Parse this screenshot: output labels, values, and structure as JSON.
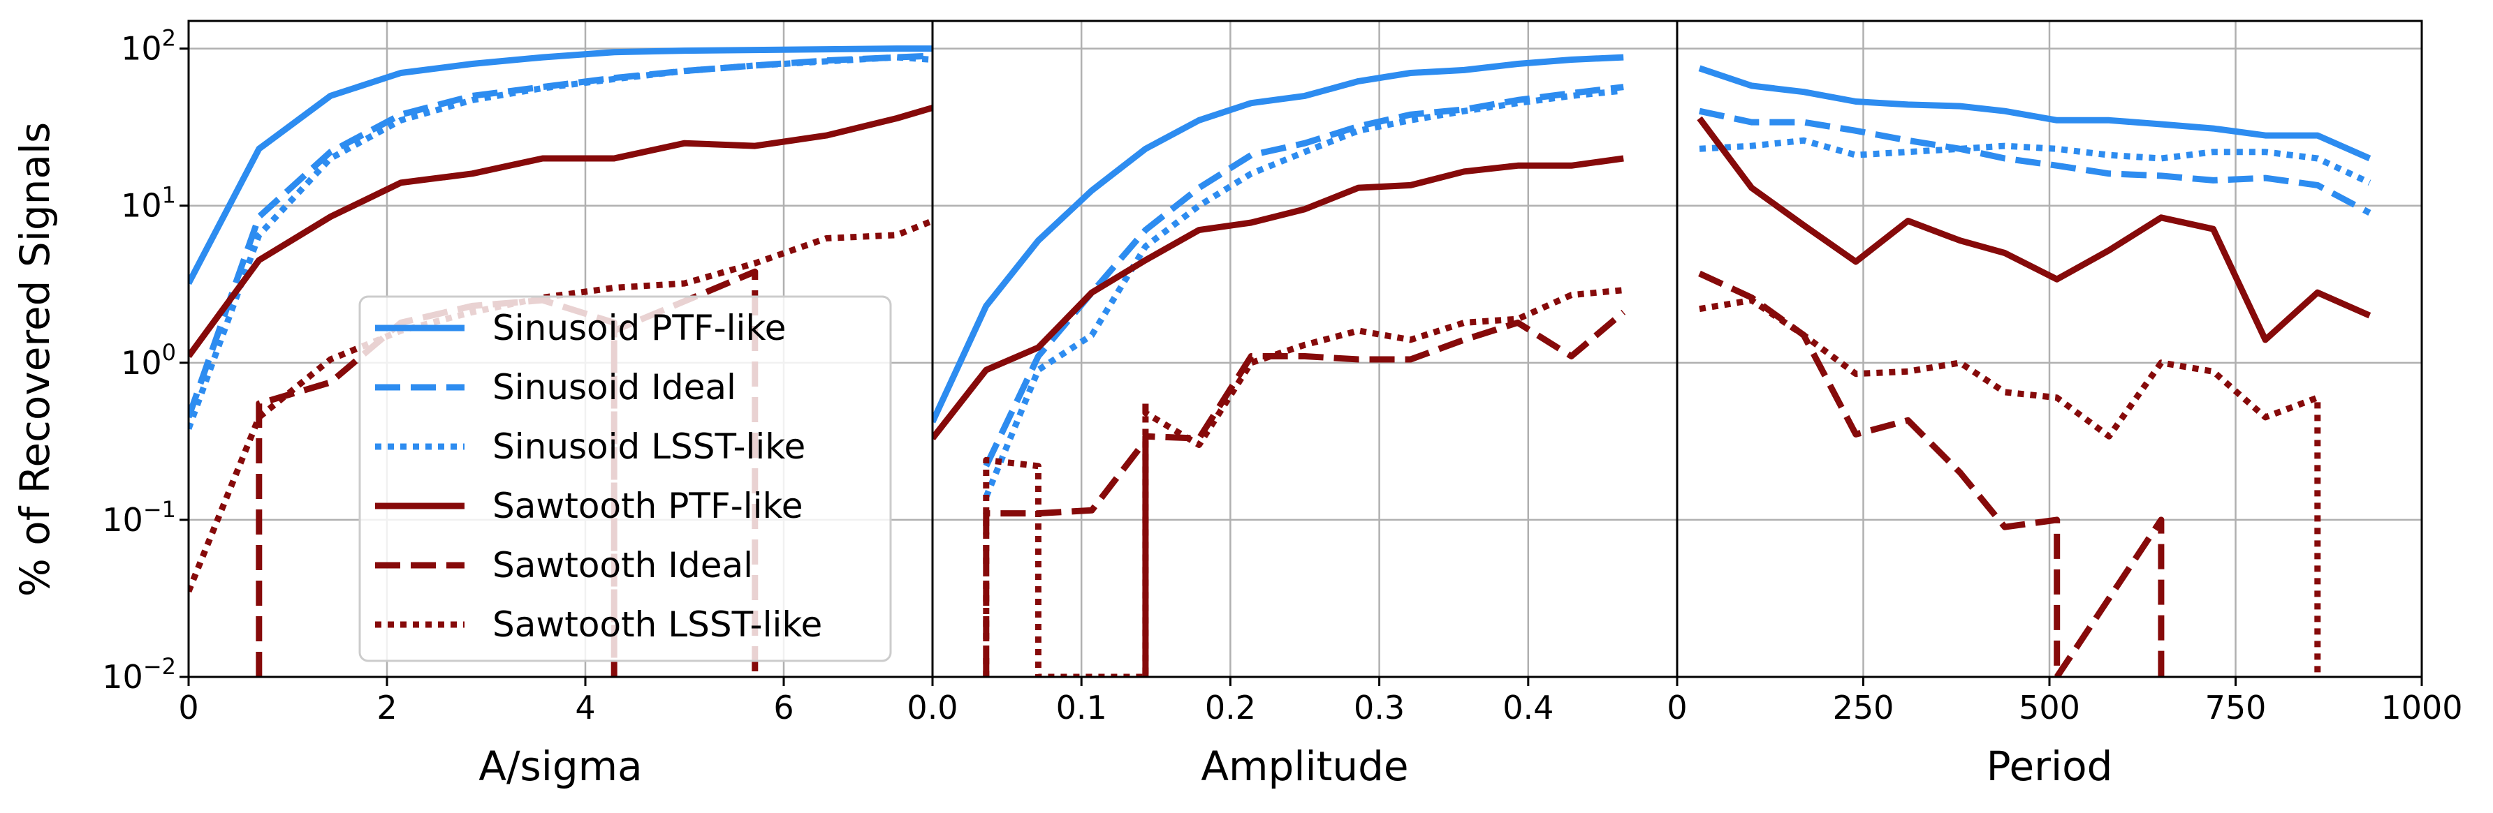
{
  "figure": {
    "ylabel": "% of Recovered Signals",
    "colors": {
      "sinusoid": "#2d8cf0",
      "sawtooth": "#860a0a",
      "grid": "#b0b0b0",
      "axis": "#000000"
    }
  },
  "legend": {
    "location": "lower-right of left panel",
    "entries": [
      {
        "label": "Sinusoid PTF-like",
        "color": "#2d8cf0",
        "style": "solid"
      },
      {
        "label": "Sinusoid Ideal",
        "color": "#2d8cf0",
        "style": "dashed"
      },
      {
        "label": "Sinusoid LSST-like",
        "color": "#2d8cf0",
        "style": "dotted"
      },
      {
        "label": "Sawtooth PTF-like",
        "color": "#860a0a",
        "style": "solid"
      },
      {
        "label": "Sawtooth Ideal",
        "color": "#860a0a",
        "style": "dashed"
      },
      {
        "label": "Sawtooth LSST-like",
        "color": "#860a0a",
        "style": "dotted"
      }
    ]
  },
  "chart_data": [
    {
      "type": "line",
      "xlabel": "A/sigma",
      "ylabel": "% of Recovered Signals",
      "yscale": "log",
      "xlim": [
        0,
        7.5
      ],
      "ylim": [
        0.01,
        150
      ],
      "xticks": [
        0,
        2,
        4,
        6
      ],
      "xtick_labels": [
        "0",
        "2",
        "4",
        "6"
      ],
      "yticks": [
        0.01,
        0.1,
        1,
        10,
        100
      ],
      "ytick_labels": [
        [
          "10",
          "−2"
        ],
        [
          "10",
          "−1"
        ],
        [
          "10",
          "0"
        ],
        [
          "10",
          "1"
        ],
        [
          "10",
          "2"
        ]
      ],
      "grid": true,
      "series": [
        {
          "name": "Sinusoid PTF-like",
          "color": "#2d8cf0",
          "style": "solid",
          "x": [
            0,
            0.71,
            1.43,
            2.14,
            2.86,
            3.57,
            4.29,
            5.0,
            5.71,
            6.43,
            7.14,
            7.5
          ],
          "y": [
            3.2,
            23,
            50,
            70,
            80,
            88,
            95,
            97,
            98,
            99,
            100,
            100
          ]
        },
        {
          "name": "Sinusoid Ideal",
          "color": "#2d8cf0",
          "style": "dashed",
          "x": [
            0,
            0.71,
            1.43,
            2.14,
            2.86,
            3.57,
            4.29,
            5.0,
            5.71,
            6.43,
            7.14,
            7.5
          ],
          "y": [
            0.45,
            8.5,
            22,
            38,
            50,
            57,
            65,
            72,
            78,
            84,
            88,
            90
          ]
        },
        {
          "name": "Sinusoid LSST-like",
          "color": "#2d8cf0",
          "style": "dotted",
          "x": [
            0,
            0.71,
            1.43,
            2.14,
            2.86,
            3.57,
            4.29,
            5.0,
            5.71,
            6.43,
            7.14,
            7.5
          ],
          "y": [
            0.38,
            6.5,
            20,
            35,
            47,
            56,
            64,
            72,
            78,
            83,
            88,
            85
          ]
        },
        {
          "name": "Sawtooth PTF-like",
          "color": "#860a0a",
          "style": "solid",
          "x": [
            0,
            0.71,
            1.43,
            2.14,
            2.86,
            3.57,
            4.29,
            5.0,
            5.71,
            6.43,
            7.14,
            7.5
          ],
          "y": [
            1.1,
            4.5,
            8.5,
            14,
            16,
            20,
            20,
            25,
            24,
            28,
            36,
            42
          ]
        },
        {
          "name": "Sawtooth Ideal",
          "color": "#860a0a",
          "style": "dashed",
          "x": [
            0.71,
            0.71,
            1.43,
            2.14,
            2.86,
            3.57,
            4.29,
            4.29,
            4.29,
            5.71,
            5.71
          ],
          "y": [
            0.01,
            0.55,
            0.75,
            1.8,
            2.3,
            2.5,
            1.8,
            0.01,
            1.6,
            3.8,
            0.01
          ]
        },
        {
          "name": "Sawtooth LSST-like",
          "color": "#860a0a",
          "style": "dotted",
          "x": [
            0,
            0.71,
            1.43,
            2.14,
            2.86,
            3.57,
            4.29,
            5.0,
            5.71,
            6.43,
            7.14,
            7.5
          ],
          "y": [
            0.035,
            0.45,
            1.05,
            1.6,
            2.1,
            2.6,
            3.0,
            3.2,
            4.3,
            6.2,
            6.5,
            8.0
          ]
        }
      ]
    },
    {
      "type": "line",
      "xlabel": "Amplitude",
      "yscale": "log",
      "xlim": [
        0,
        0.5
      ],
      "ylim": [
        0.01,
        150
      ],
      "xticks": [
        0,
        0.1,
        0.2,
        0.3,
        0.4
      ],
      "xtick_labels": [
        "0.0",
        "0.1",
        "0.2",
        "0.3",
        "0.4"
      ],
      "grid": true,
      "series": [
        {
          "name": "Sinusoid PTF-like",
          "color": "#2d8cf0",
          "style": "solid",
          "x": [
            0,
            0.036,
            0.071,
            0.107,
            0.143,
            0.179,
            0.214,
            0.25,
            0.286,
            0.321,
            0.357,
            0.393,
            0.429,
            0.464
          ],
          "y": [
            0.42,
            2.3,
            6,
            12.5,
            23,
            35,
            45,
            50,
            62,
            70,
            73,
            80,
            85,
            88
          ]
        },
        {
          "name": "Sinusoid Ideal",
          "color": "#2d8cf0",
          "style": "dashed",
          "x": [
            0.036,
            0.071,
            0.107,
            0.143,
            0.179,
            0.214,
            0.25,
            0.286,
            0.321,
            0.357,
            0.393,
            0.429,
            0.464
          ],
          "y": [
            0.22,
            1.1,
            2.8,
            7,
            13,
            21,
            25,
            32,
            38,
            41,
            47,
            52,
            57
          ]
        },
        {
          "name": "Sinusoid LSST-like",
          "color": "#2d8cf0",
          "style": "dotted",
          "x": [
            0.036,
            0.071,
            0.107,
            0.143,
            0.179,
            0.214,
            0.25,
            0.286,
            0.321,
            0.357,
            0.393,
            0.429,
            0.464
          ],
          "y": [
            0.14,
            0.9,
            1.5,
            5.5,
            10,
            16,
            22,
            30,
            35,
            40,
            45,
            50,
            54
          ]
        },
        {
          "name": "Sawtooth PTF-like",
          "color": "#860a0a",
          "style": "solid",
          "x": [
            0,
            0.036,
            0.071,
            0.107,
            0.143,
            0.179,
            0.214,
            0.25,
            0.286,
            0.321,
            0.357,
            0.393,
            0.429,
            0.464
          ],
          "y": [
            0.33,
            0.9,
            1.25,
            2.8,
            4.5,
            7,
            7.8,
            9.5,
            13,
            13.5,
            16.5,
            18,
            18,
            20
          ]
        },
        {
          "name": "Sawtooth Ideal",
          "color": "#860a0a",
          "style": "dashed",
          "x": [
            0.036,
            0.036,
            0.071,
            0.107,
            0.143,
            0.143,
            0.143,
            0.179,
            0.214,
            0.25,
            0.286,
            0.321,
            0.357,
            0.393,
            0.429,
            0.464
          ],
          "y": [
            0.01,
            0.11,
            0.11,
            0.115,
            0.32,
            0.01,
            0.34,
            0.33,
            1.1,
            1.1,
            1.05,
            1.05,
            1.4,
            1.8,
            1.1,
            2.1
          ]
        },
        {
          "name": "Sawtooth LSST-like",
          "color": "#860a0a",
          "style": "dotted",
          "x": [
            0.036,
            0.036,
            0.071,
            0.071,
            0.071,
            0.143,
            0.143,
            0.143,
            0.179,
            0.214,
            0.25,
            0.286,
            0.321,
            0.357,
            0.393,
            0.429,
            0.464
          ],
          "y": [
            0.01,
            0.24,
            0.22,
            0.01,
            0.01,
            0.01,
            0.55,
            0.48,
            0.3,
            1.0,
            1.3,
            1.6,
            1.4,
            1.8,
            1.9,
            2.7,
            2.9
          ]
        }
      ]
    },
    {
      "type": "line",
      "xlabel": "Period",
      "yscale": "log",
      "xlim": [
        0,
        1000
      ],
      "ylim": [
        0.01,
        150
      ],
      "xticks": [
        0,
        250,
        500,
        750,
        1000
      ],
      "xtick_labels": [
        "0",
        "250",
        "500",
        "750",
        "1000"
      ],
      "grid": true,
      "series": [
        {
          "name": "Sinusoid PTF-like",
          "color": "#2d8cf0",
          "style": "solid",
          "x": [
            30,
            100,
            170,
            240,
            310,
            380,
            440,
            510,
            580,
            650,
            720,
            790,
            860,
            930
          ],
          "y": [
            75,
            58,
            53,
            46,
            44,
            43,
            40,
            35,
            35,
            33,
            31,
            28,
            28,
            20
          ]
        },
        {
          "name": "Sinusoid Ideal",
          "color": "#2d8cf0",
          "style": "dashed",
          "x": [
            30,
            100,
            170,
            240,
            310,
            380,
            440,
            510,
            580,
            650,
            720,
            790,
            860,
            930
          ],
          "y": [
            40,
            34,
            34,
            30,
            26,
            23,
            20,
            18,
            16,
            15.5,
            14.5,
            15,
            13.5,
            9
          ]
        },
        {
          "name": "Sinusoid LSST-like",
          "color": "#2d8cf0",
          "style": "dotted",
          "x": [
            30,
            100,
            170,
            240,
            310,
            380,
            440,
            510,
            580,
            650,
            720,
            790,
            860,
            930
          ],
          "y": [
            23,
            24,
            26,
            21,
            22,
            23,
            24,
            23,
            21,
            20,
            22,
            22,
            20,
            14
          ]
        },
        {
          "name": "Sawtooth PTF-like",
          "color": "#860a0a",
          "style": "solid",
          "x": [
            30,
            100,
            170,
            240,
            310,
            380,
            440,
            510,
            580,
            650,
            720,
            790,
            860,
            930
          ],
          "y": [
            36,
            13,
            7.5,
            4.4,
            8,
            6,
            5,
            3.4,
            5.2,
            8.4,
            7.1,
            1.4,
            2.8,
            2.0
          ]
        },
        {
          "name": "Sawtooth Ideal",
          "color": "#860a0a",
          "style": "dashed",
          "x": [
            30,
            100,
            170,
            240,
            310,
            380,
            440,
            510,
            510,
            650,
            650
          ],
          "y": [
            3.7,
            2.6,
            1.5,
            0.35,
            0.43,
            0.2,
            0.09,
            0.1,
            0.01,
            0.1,
            0.01
          ]
        },
        {
          "name": "Sawtooth LSST-like",
          "color": "#860a0a",
          "style": "dotted",
          "x": [
            30,
            100,
            170,
            240,
            310,
            380,
            440,
            510,
            580,
            650,
            720,
            790,
            860,
            860
          ],
          "y": [
            2.2,
            2.5,
            1.5,
            0.85,
            0.88,
            1.0,
            0.65,
            0.6,
            0.34,
            1.0,
            0.88,
            0.45,
            0.6,
            0.01
          ]
        }
      ]
    }
  ]
}
